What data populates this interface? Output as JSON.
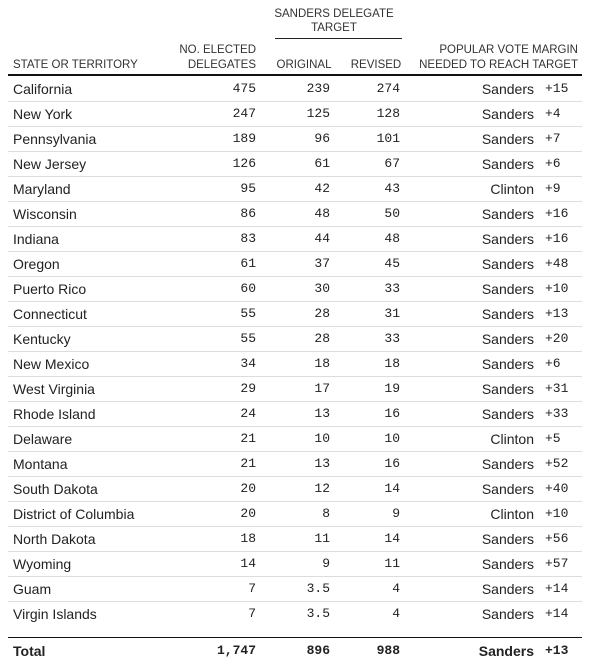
{
  "table": {
    "header": {
      "group": [
        "SANDERS DELEGATE",
        "TARGET"
      ],
      "state": "STATE OR TERRITORY",
      "elected": [
        "NO. ELECTED",
        "DELEGATES"
      ],
      "original": "ORIGINAL",
      "revised": "REVISED",
      "margin": [
        "POPULAR VOTE MARGIN",
        "NEEDED TO REACH TARGET"
      ]
    },
    "rows": [
      [
        "California",
        "475",
        "239",
        "274",
        "Sanders",
        "+15"
      ],
      [
        "New York",
        "247",
        "125",
        "128",
        "Sanders",
        "+4"
      ],
      [
        "Pennsylvania",
        "189",
        "96",
        "101",
        "Sanders",
        "+7"
      ],
      [
        "New Jersey",
        "126",
        "61",
        "67",
        "Sanders",
        "+6"
      ],
      [
        "Maryland",
        "95",
        "42",
        "43",
        "Clinton",
        "+9"
      ],
      [
        "Wisconsin",
        "86",
        "48",
        "50",
        "Sanders",
        "+16"
      ],
      [
        "Indiana",
        "83",
        "44",
        "48",
        "Sanders",
        "+16"
      ],
      [
        "Oregon",
        "61",
        "37",
        "45",
        "Sanders",
        "+48"
      ],
      [
        "Puerto Rico",
        "60",
        "30",
        "33",
        "Sanders",
        "+10"
      ],
      [
        "Connecticut",
        "55",
        "28",
        "31",
        "Sanders",
        "+13"
      ],
      [
        "Kentucky",
        "55",
        "28",
        "33",
        "Sanders",
        "+20"
      ],
      [
        "New Mexico",
        "34",
        "18",
        "18",
        "Sanders",
        "+6"
      ],
      [
        "West Virginia",
        "29",
        "17",
        "19",
        "Sanders",
        "+31"
      ],
      [
        "Rhode Island",
        "24",
        "13",
        "16",
        "Sanders",
        "+33"
      ],
      [
        "Delaware",
        "21",
        "10",
        "10",
        "Clinton",
        "+5"
      ],
      [
        "Montana",
        "21",
        "13",
        "16",
        "Sanders",
        "+52"
      ],
      [
        "South Dakota",
        "20",
        "12",
        "14",
        "Sanders",
        "+40"
      ],
      [
        "District of Columbia",
        "20",
        "8",
        "9",
        "Clinton",
        "+10"
      ],
      [
        "North Dakota",
        "18",
        "11",
        "14",
        "Sanders",
        "+56"
      ],
      [
        "Wyoming",
        "14",
        "9",
        "11",
        "Sanders",
        "+57"
      ],
      [
        "Guam",
        "7",
        "3.5",
        "4",
        "Sanders",
        "+14"
      ],
      [
        "Virgin Islands",
        "7",
        "3.5",
        "4",
        "Sanders",
        "+14"
      ]
    ],
    "total": [
      "Total",
      "1,747",
      "896",
      "988",
      "Sanders",
      "+13"
    ]
  }
}
